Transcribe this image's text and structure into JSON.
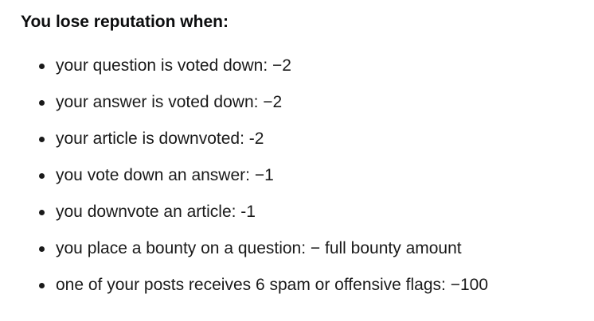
{
  "section": {
    "heading": "You lose reputation when:",
    "items": [
      {
        "text": "your question is voted down: −2"
      },
      {
        "text": "your answer is voted down: −2"
      },
      {
        "text": "your article is downvoted: -2"
      },
      {
        "text": "you vote down an answer: −1"
      },
      {
        "text": "you downvote an article: -1"
      },
      {
        "text": "you place a bounty on a question: − full bounty amount"
      },
      {
        "text": "one of your posts receives 6 spam or offensive flags: −100"
      }
    ]
  }
}
